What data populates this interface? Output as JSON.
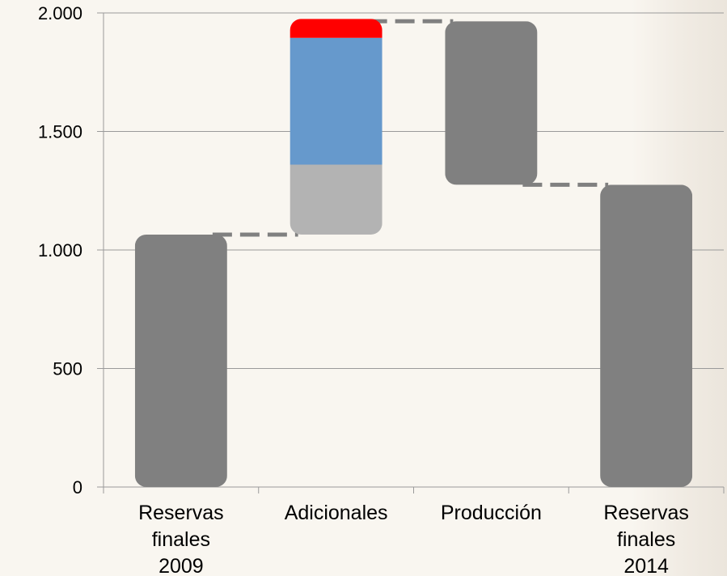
{
  "chart_data": {
    "type": "bar",
    "subtype": "waterfall",
    "title": "",
    "xlabel": "",
    "ylabel": "",
    "ylim": [
      0,
      2000
    ],
    "grid": true,
    "y_ticks": [
      {
        "value": 0,
        "label": "0"
      },
      {
        "value": 500,
        "label": "500"
      },
      {
        "value": 1000,
        "label": "1.000"
      },
      {
        "value": 1500,
        "label": "1.500"
      },
      {
        "value": 2000,
        "label": "2.000"
      }
    ],
    "categories": [
      {
        "lines": [
          "Reservas",
          "finales",
          "2009"
        ]
      },
      {
        "lines": [
          "Adicionales"
        ]
      },
      {
        "lines": [
          "Producción"
        ]
      },
      {
        "lines": [
          "Reservas",
          "finales",
          "2014"
        ]
      }
    ],
    "bars": [
      {
        "category_index": 0,
        "base": 0,
        "value": 1065,
        "color": "#808080"
      },
      {
        "category_index": 1,
        "base": 1065,
        "value": 295,
        "color": "#b3b3b3"
      },
      {
        "category_index": 1,
        "base": 1360,
        "value": 535,
        "color": "#6699cc"
      },
      {
        "category_index": 1,
        "base": 1895,
        "value": 80,
        "color": "#ff0000"
      },
      {
        "category_index": 2,
        "base": 1275,
        "value": 690,
        "color": "#808080"
      },
      {
        "category_index": 3,
        "base": 0,
        "value": 1275,
        "color": "#808080"
      }
    ],
    "connectors": [
      {
        "from": 0,
        "to": 1,
        "value": 1065
      },
      {
        "from": 1,
        "to": 2,
        "value": 1965
      },
      {
        "from": 2,
        "to": 3,
        "value": 1275
      }
    ]
  }
}
